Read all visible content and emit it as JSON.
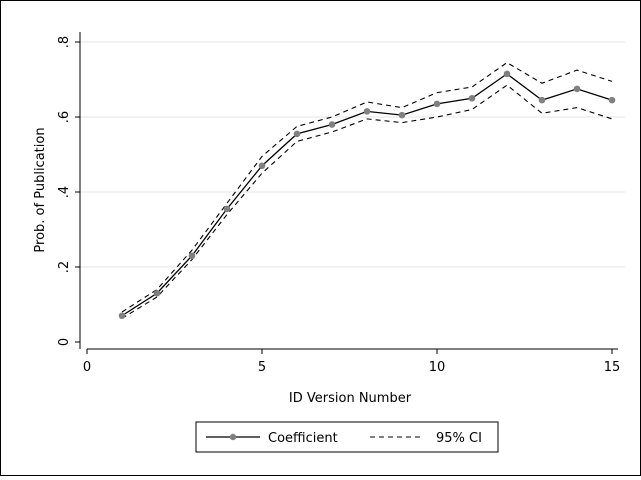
{
  "chart_data": {
    "type": "line",
    "xlabel": "ID Version Number",
    "ylabel": "Prob. of Publication",
    "xlim": [
      0,
      15.2
    ],
    "ylim": [
      0,
      0.8
    ],
    "xticks": [
      0,
      5,
      10,
      15
    ],
    "yticks": [
      0,
      0.2,
      0.4,
      0.6,
      0.8
    ],
    "xtick_labels": [
      "0",
      "5",
      "10",
      "15"
    ],
    "ytick_labels": [
      "0",
      ".2",
      ".4",
      ".6",
      ".8"
    ],
    "grid": "horizontal",
    "legend_position": "bottom",
    "x": [
      1,
      2,
      3,
      4,
      5,
      6,
      7,
      8,
      9,
      10,
      11,
      12,
      13,
      14,
      15
    ],
    "series": [
      {
        "name": "Coefficient",
        "style": "solid-with-markers",
        "color": "#000000",
        "marker_color": "#808080",
        "values": [
          0.07,
          0.13,
          0.23,
          0.355,
          0.47,
          0.555,
          0.58,
          0.615,
          0.605,
          0.635,
          0.65,
          0.715,
          0.645,
          0.675,
          0.645
        ]
      },
      {
        "name": "95% CI",
        "style": "dashed",
        "color": "#000000",
        "lower": [
          0.063,
          0.12,
          0.22,
          0.34,
          0.45,
          0.535,
          0.56,
          0.595,
          0.585,
          0.6,
          0.62,
          0.685,
          0.61,
          0.625,
          0.595
        ],
        "upper": [
          0.08,
          0.14,
          0.245,
          0.37,
          0.495,
          0.575,
          0.6,
          0.64,
          0.625,
          0.665,
          0.68,
          0.745,
          0.69,
          0.725,
          0.695
        ]
      }
    ]
  }
}
